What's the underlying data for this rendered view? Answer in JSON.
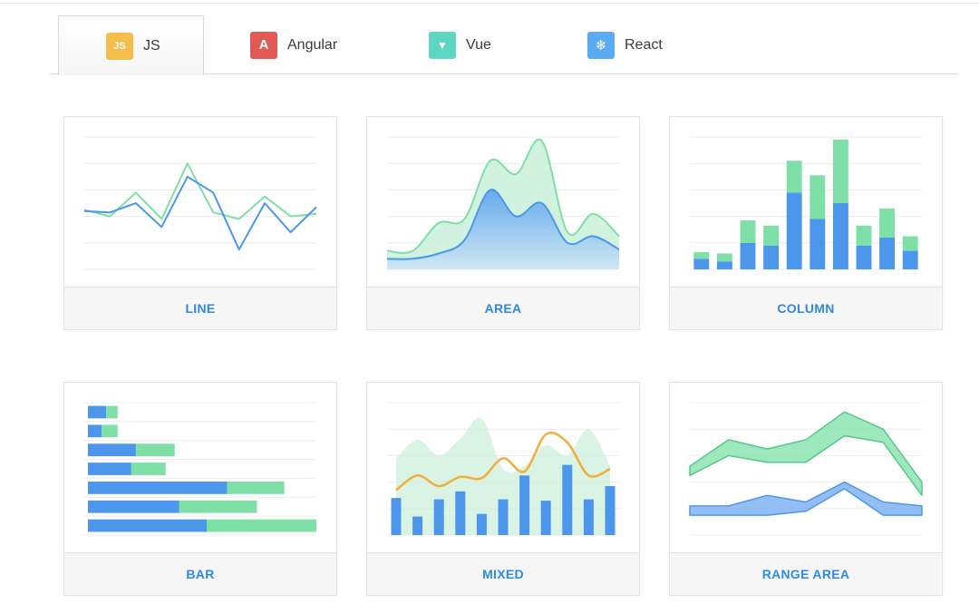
{
  "tabs": [
    {
      "label": "JS",
      "icon": "js-icon",
      "icon_text": "JS",
      "color": "#f4bd4c",
      "active": true
    },
    {
      "label": "Angular",
      "icon": "angular-icon",
      "icon_text": "A",
      "color": "#e25a55",
      "active": false
    },
    {
      "label": "Vue",
      "icon": "vue-icon",
      "icon_text": "▼",
      "color": "#5fd6c4",
      "active": false
    },
    {
      "label": "React",
      "icon": "react-icon",
      "icon_text": "❄",
      "color": "#5aabf2",
      "active": false
    }
  ],
  "colors": {
    "blue": "#4c97ec",
    "green": "#7ee0a7",
    "orange": "#f3ad3a",
    "accent": "#2f8ae4"
  },
  "cards": [
    {
      "label": "LINE"
    },
    {
      "label": "AREA"
    },
    {
      "label": "COLUMN"
    },
    {
      "label": "BAR"
    },
    {
      "label": "MIXED"
    },
    {
      "label": "RANGE AREA"
    }
  ],
  "chart_data": [
    {
      "type": "line",
      "title": "LINE",
      "ylim": [
        0,
        100
      ],
      "x": [
        0,
        1,
        2,
        3,
        4,
        5,
        6,
        7,
        8,
        9
      ],
      "series": [
        {
          "name": "green",
          "values": [
            45,
            40,
            58,
            38,
            80,
            43,
            38,
            55,
            40,
            42
          ]
        },
        {
          "name": "blue",
          "values": [
            44,
            43,
            50,
            32,
            70,
            58,
            15,
            50,
            28,
            47
          ]
        }
      ]
    },
    {
      "type": "area",
      "title": "AREA",
      "ylim": [
        0,
        100
      ],
      "x": [
        0,
        1,
        2,
        3,
        4,
        5,
        6,
        7,
        8,
        9
      ],
      "series": [
        {
          "name": "green",
          "values": [
            14,
            14,
            35,
            38,
            82,
            72,
            97,
            28,
            42,
            25
          ]
        },
        {
          "name": "blue",
          "values": [
            8,
            8,
            12,
            22,
            60,
            40,
            50,
            20,
            25,
            15
          ]
        }
      ]
    },
    {
      "type": "bar",
      "title": "COLUMN",
      "stacked": true,
      "ylim": [
        0,
        100
      ],
      "categories": [
        "1",
        "2",
        "3",
        "4",
        "5",
        "6",
        "7",
        "8",
        "9",
        "10"
      ],
      "series": [
        {
          "name": "blue",
          "values": [
            8,
            6,
            20,
            18,
            58,
            38,
            50,
            18,
            24,
            14
          ]
        },
        {
          "name": "green",
          "values": [
            5,
            6,
            17,
            15,
            24,
            33,
            48,
            15,
            22,
            11
          ]
        }
      ]
    },
    {
      "type": "bar",
      "title": "BAR",
      "orientation": "horizontal",
      "stacked": true,
      "xlim": [
        0,
        100
      ],
      "categories": [
        "1",
        "2",
        "3",
        "4",
        "5",
        "6",
        "7"
      ],
      "series": [
        {
          "name": "blue",
          "values": [
            8,
            6,
            21,
            19,
            61,
            40,
            52
          ]
        },
        {
          "name": "green",
          "values": [
            5,
            7,
            17,
            15,
            25,
            34,
            48
          ]
        }
      ]
    },
    {
      "type": "area",
      "title": "MIXED",
      "ylim": [
        0,
        100
      ],
      "x": [
        0,
        1,
        2,
        3,
        4,
        5,
        6,
        7,
        8,
        9,
        10
      ],
      "series": [
        {
          "name": "green area",
          "kind": "area",
          "values": [
            58,
            72,
            60,
            73,
            88,
            50,
            52,
            68,
            60,
            80,
            52
          ]
        },
        {
          "name": "blue columns",
          "kind": "column",
          "values": [
            28,
            14,
            27,
            33,
            16,
            27,
            45,
            26,
            53,
            27,
            37
          ]
        },
        {
          "name": "orange line",
          "kind": "line",
          "values": [
            34,
            45,
            37,
            44,
            43,
            58,
            48,
            76,
            70,
            45,
            50
          ]
        }
      ]
    },
    {
      "type": "area",
      "title": "RANGE AREA",
      "subtype": "range",
      "ylim": [
        0,
        100
      ],
      "x": [
        0,
        1,
        2,
        3,
        4,
        5,
        6
      ],
      "series": [
        {
          "name": "green",
          "low": [
            45,
            60,
            55,
            55,
            75,
            70,
            30
          ],
          "high": [
            52,
            72,
            65,
            72,
            93,
            80,
            40
          ]
        },
        {
          "name": "blue",
          "low": [
            15,
            15,
            15,
            18,
            35,
            15,
            15
          ],
          "high": [
            22,
            22,
            30,
            25,
            40,
            25,
            22
          ]
        }
      ]
    }
  ]
}
